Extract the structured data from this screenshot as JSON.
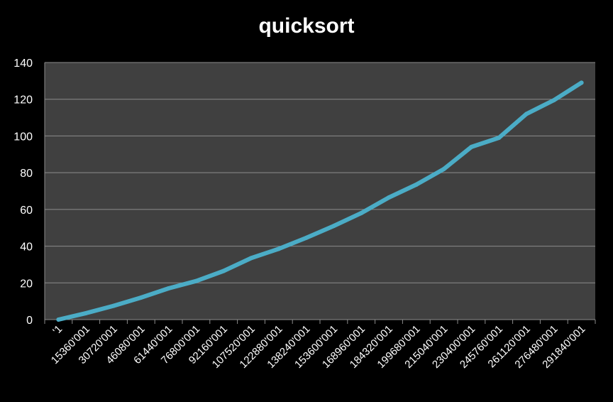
{
  "chart_data": {
    "type": "line",
    "title": "quicksort",
    "xlabel": "",
    "ylabel": "",
    "ylim": [
      0,
      140
    ],
    "yticks": [
      0,
      20,
      40,
      60,
      80,
      100,
      120,
      140
    ],
    "grid": true,
    "legend": "none",
    "categories": [
      "'1",
      "15360'001",
      "30720'001",
      "46080'001",
      "61440'001",
      "76800'001",
      "92160'001",
      "107520'001",
      "122880'001",
      "138240'001",
      "153600'001",
      "168960'001",
      "184320'001",
      "199680'001",
      "215040'001",
      "230400'001",
      "245760'001",
      "261120'001",
      "276480'001",
      "291840'001"
    ],
    "series": [
      {
        "values": [
          0,
          3.5,
          7.5,
          12,
          17,
          21,
          26.5,
          33.5,
          38.5,
          44.5,
          51,
          58,
          66.5,
          73.5,
          82,
          94,
          99,
          112,
          119.5,
          129
        ]
      }
    ],
    "colors": {
      "background": "#000000",
      "plot_area": "#404040",
      "gridline": "#8c8c8c",
      "line": "#4bacc6",
      "text": "#ffffff"
    }
  }
}
